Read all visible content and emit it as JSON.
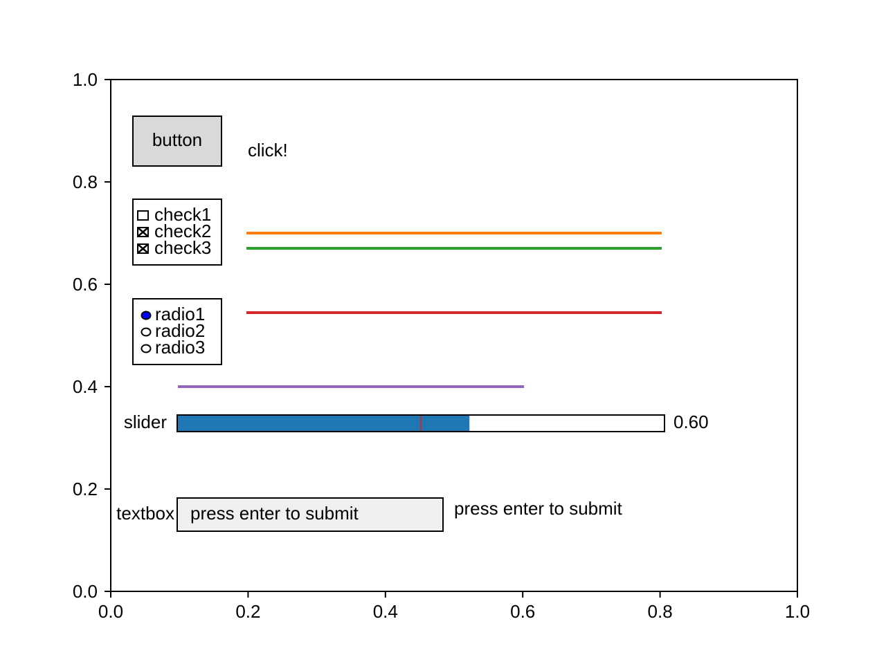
{
  "axes": {
    "x_ticks": [
      "0.0",
      "0.2",
      "0.4",
      "0.6",
      "0.8",
      "1.0"
    ],
    "y_ticks": [
      "0.0",
      "0.2",
      "0.4",
      "0.6",
      "0.8",
      "1.0"
    ]
  },
  "button": {
    "label": "button",
    "output_text": "click!"
  },
  "checkboxes": [
    {
      "label": "check1",
      "checked": false
    },
    {
      "label": "check2",
      "checked": true
    },
    {
      "label": "check3",
      "checked": true
    }
  ],
  "radio": {
    "options": [
      "radio1",
      "radio2",
      "radio3"
    ],
    "selected": "radio1"
  },
  "slider": {
    "label": "slider",
    "value": 0.6,
    "value_text": "0.60",
    "min": 0,
    "max": 1,
    "initial_marker": 0.5
  },
  "textbox": {
    "label": "textbox",
    "value": "press enter to submit",
    "output_text": "press enter to submit"
  },
  "colors": {
    "slider_fill": "#1f77b4",
    "slider_marker": "#d62728",
    "button_face": "#d9d9d9",
    "textbox_face": "#f0f0f0",
    "radio_active": "#0000ff",
    "line_check2": "#ff7f0e",
    "line_check3": "#2ca02c",
    "line_radio1": "#d62728",
    "line_slider": "#9467bd"
  }
}
